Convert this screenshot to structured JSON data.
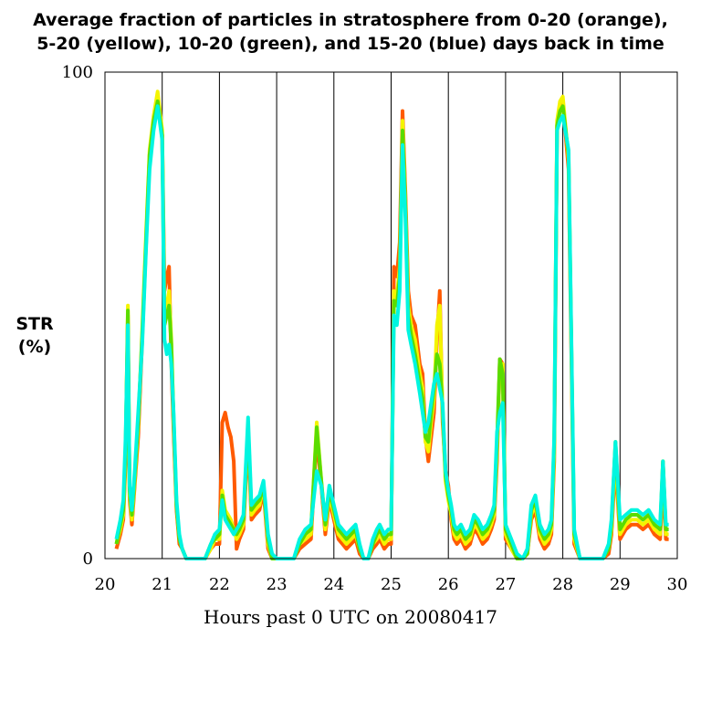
{
  "chart_data": {
    "type": "line",
    "title_lines": [
      "Average fraction of particles in stratosphere from 0-20 (orange),",
      "5-20 (yellow), 10-20 (green), and 15-20 (blue) days back in time"
    ],
    "ylabel_lines": [
      "STR",
      "(%)"
    ],
    "xlabel": "Hours past 0 UTC on 20080417",
    "xlim": [
      20,
      30
    ],
    "ylim": [
      0,
      100
    ],
    "x_ticks": [
      "20",
      "21",
      "22",
      "23",
      "24",
      "25",
      "26",
      "27",
      "28",
      "29",
      "30"
    ],
    "y_ticks": [
      "0",
      "100"
    ],
    "vertical_grid": [
      21,
      22,
      23,
      24,
      25,
      26,
      27,
      28,
      29
    ],
    "series": [
      {
        "color": "#ff5a00",
        "x": [
          20.2,
          20.27,
          20.32,
          20.36,
          20.4,
          20.43,
          20.47,
          20.52,
          20.58,
          20.65,
          20.72,
          20.78,
          20.85,
          20.92,
          21.0,
          21.04,
          21.08,
          21.12,
          21.16,
          21.2,
          21.25,
          21.3,
          21.35,
          21.42,
          21.5,
          21.58,
          21.65,
          21.75,
          21.85,
          21.92,
          22.0,
          22.05,
          22.1,
          22.15,
          22.2,
          22.25,
          22.3,
          22.35,
          22.42,
          22.5,
          22.56,
          22.62,
          22.7,
          22.77,
          22.85,
          22.92,
          23.0,
          23.1,
          23.2,
          23.3,
          23.4,
          23.5,
          23.6,
          23.7,
          23.78,
          23.85,
          23.92,
          24.0,
          24.08,
          24.15,
          24.22,
          24.3,
          24.38,
          24.45,
          24.52,
          24.6,
          24.68,
          24.75,
          24.8,
          24.88,
          24.95,
          25.0,
          25.05,
          25.1,
          25.15,
          25.2,
          25.25,
          25.3,
          25.35,
          25.42,
          25.5,
          25.55,
          25.6,
          25.65,
          25.7,
          25.75,
          25.8,
          25.85,
          25.9,
          25.95,
          26.0,
          26.05,
          26.1,
          26.15,
          26.22,
          26.3,
          26.38,
          26.45,
          26.52,
          26.6,
          26.68,
          26.75,
          26.8,
          26.85,
          26.9,
          26.95,
          27.0,
          27.1,
          27.2,
          27.3,
          27.38,
          27.45,
          27.52,
          27.6,
          27.68,
          27.75,
          27.8,
          27.85,
          27.9,
          27.95,
          28.0,
          28.1,
          28.2,
          28.3,
          28.4,
          28.5,
          28.6,
          28.7,
          28.8,
          28.85,
          28.92,
          29.0,
          29.1,
          29.2,
          29.3,
          29.4,
          29.5,
          29.6,
          29.7,
          29.75,
          29.8,
          29.85
        ],
        "values": [
          2,
          5,
          8,
          20,
          50,
          12,
          7,
          15,
          25,
          45,
          65,
          83,
          90,
          95,
          87,
          55,
          58,
          60,
          40,
          26,
          10,
          3,
          2,
          0,
          0,
          0,
          0,
          0,
          2,
          3,
          3,
          28,
          30,
          27,
          25,
          20,
          2,
          4,
          6,
          25,
          8,
          9,
          10,
          14,
          2,
          0,
          0,
          0,
          0,
          0,
          2,
          3,
          4,
          25,
          15,
          5,
          12,
          8,
          4,
          3,
          2,
          3,
          4,
          1,
          0,
          0,
          2,
          3,
          4,
          2,
          3,
          3,
          60,
          58,
          65,
          92,
          75,
          55,
          50,
          48,
          40,
          38,
          25,
          20,
          25,
          30,
          45,
          55,
          28,
          18,
          15,
          8,
          4,
          3,
          4,
          2,
          3,
          6,
          5,
          3,
          4,
          6,
          8,
          20,
          41,
          40,
          4,
          2,
          0,
          0,
          1,
          8,
          10,
          4,
          2,
          3,
          5,
          20,
          88,
          93,
          94,
          80,
          3,
          0,
          0,
          0,
          0,
          0,
          1,
          5,
          20,
          4,
          6,
          7,
          7,
          6,
          7,
          5,
          4,
          16,
          4,
          4
        ]
      },
      {
        "color": "#f4f400",
        "x": [
          20.2,
          20.27,
          20.32,
          20.36,
          20.4,
          20.43,
          20.47,
          20.52,
          20.58,
          20.65,
          20.72,
          20.78,
          20.85,
          20.92,
          21.0,
          21.04,
          21.08,
          21.12,
          21.16,
          21.2,
          21.25,
          21.3,
          21.35,
          21.42,
          21.5,
          21.58,
          21.65,
          21.75,
          21.85,
          21.92,
          22.0,
          22.05,
          22.1,
          22.15,
          22.2,
          22.25,
          22.3,
          22.35,
          22.42,
          22.5,
          22.56,
          22.62,
          22.7,
          22.77,
          22.85,
          22.92,
          23.0,
          23.1,
          23.2,
          23.3,
          23.4,
          23.5,
          23.6,
          23.7,
          23.78,
          23.85,
          23.92,
          24.0,
          24.08,
          24.15,
          24.22,
          24.3,
          24.38,
          24.45,
          24.52,
          24.6,
          24.68,
          24.75,
          24.8,
          24.88,
          24.95,
          25.0,
          25.05,
          25.1,
          25.15,
          25.2,
          25.25,
          25.3,
          25.35,
          25.42,
          25.5,
          25.55,
          25.6,
          25.65,
          25.7,
          25.75,
          25.8,
          25.85,
          25.9,
          25.95,
          26.0,
          26.05,
          26.1,
          26.15,
          26.22,
          26.3,
          26.38,
          26.45,
          26.52,
          26.6,
          26.68,
          26.75,
          26.8,
          26.85,
          26.9,
          26.95,
          27.0,
          27.1,
          27.2,
          27.3,
          27.38,
          27.45,
          27.52,
          27.6,
          27.68,
          27.75,
          27.8,
          27.85,
          27.9,
          27.95,
          28.0,
          28.1,
          28.2,
          28.3,
          28.4,
          28.5,
          28.6,
          28.7,
          28.8,
          28.85,
          28.92,
          29.0,
          29.1,
          29.2,
          29.3,
          29.4,
          29.5,
          29.6,
          29.7,
          29.75,
          29.8,
          29.85
        ],
        "values": [
          3,
          6,
          9,
          22,
          52,
          13,
          8,
          16,
          27,
          47,
          67,
          84,
          91,
          96,
          88,
          50,
          52,
          55,
          45,
          28,
          11,
          4,
          2,
          0,
          0,
          0,
          0,
          0,
          2,
          4,
          4,
          14,
          10,
          9,
          8,
          6,
          4,
          5,
          7,
          27,
          9,
          10,
          11,
          15,
          3,
          0,
          0,
          0,
          0,
          0,
          3,
          4,
          5,
          28,
          16,
          6,
          13,
          9,
          5,
          4,
          3,
          4,
          5,
          2,
          0,
          0,
          3,
          4,
          5,
          3,
          4,
          4,
          55,
          54,
          60,
          90,
          73,
          52,
          48,
          45,
          38,
          35,
          24,
          22,
          28,
          33,
          48,
          52,
          30,
          16,
          12,
          9,
          5,
          4,
          5,
          3,
          4,
          7,
          6,
          4,
          5,
          7,
          9,
          22,
          40,
          40,
          5,
          2,
          0,
          0,
          1,
          9,
          11,
          5,
          3,
          4,
          6,
          22,
          90,
          94,
          95,
          82,
          4,
          0,
          0,
          0,
          0,
          0,
          2,
          6,
          22,
          5,
          7,
          8,
          8,
          7,
          8,
          6,
          5,
          20,
          5,
          5
        ]
      },
      {
        "color": "#5adc00",
        "x": [
          20.2,
          20.27,
          20.32,
          20.36,
          20.4,
          20.43,
          20.47,
          20.52,
          20.58,
          20.65,
          20.72,
          20.78,
          20.85,
          20.92,
          21.0,
          21.04,
          21.08,
          21.12,
          21.16,
          21.2,
          21.25,
          21.3,
          21.35,
          21.42,
          21.5,
          21.58,
          21.65,
          21.75,
          21.85,
          21.92,
          22.0,
          22.05,
          22.1,
          22.15,
          22.2,
          22.25,
          22.3,
          22.35,
          22.42,
          22.5,
          22.56,
          22.62,
          22.7,
          22.77,
          22.85,
          22.92,
          23.0,
          23.1,
          23.2,
          23.3,
          23.4,
          23.5,
          23.6,
          23.7,
          23.78,
          23.85,
          23.92,
          24.0,
          24.08,
          24.15,
          24.22,
          24.3,
          24.38,
          24.45,
          24.52,
          24.6,
          24.68,
          24.75,
          24.8,
          24.88,
          24.95,
          25.0,
          25.05,
          25.1,
          25.15,
          25.2,
          25.25,
          25.3,
          25.35,
          25.42,
          25.5,
          25.55,
          25.6,
          25.65,
          25.7,
          25.75,
          25.8,
          25.85,
          25.9,
          25.95,
          26.0,
          26.05,
          26.1,
          26.15,
          26.22,
          26.3,
          26.38,
          26.45,
          26.52,
          26.6,
          26.68,
          26.75,
          26.8,
          26.85,
          26.9,
          26.95,
          27.0,
          27.1,
          27.2,
          27.3,
          27.38,
          27.45,
          27.52,
          27.6,
          27.68,
          27.75,
          27.8,
          27.85,
          27.9,
          27.95,
          28.0,
          28.1,
          28.2,
          28.3,
          28.4,
          28.5,
          28.6,
          28.7,
          28.8,
          28.85,
          28.92,
          29.0,
          29.1,
          29.2,
          29.3,
          29.4,
          29.5,
          29.6,
          29.7,
          29.75,
          29.8,
          29.85
        ],
        "values": [
          3,
          7,
          10,
          23,
          51,
          14,
          9,
          17,
          28,
          46,
          66,
          83,
          90,
          94,
          87,
          48,
          50,
          52,
          44,
          29,
          11,
          4,
          2,
          0,
          0,
          0,
          0,
          0,
          3,
          4,
          5,
          13,
          9,
          8,
          7,
          6,
          5,
          6,
          8,
          27,
          10,
          11,
          12,
          15,
          4,
          0,
          0,
          0,
          0,
          0,
          3,
          5,
          6,
          27,
          16,
          7,
          14,
          10,
          6,
          5,
          4,
          5,
          6,
          2,
          0,
          0,
          3,
          5,
          6,
          4,
          5,
          5,
          53,
          52,
          58,
          88,
          72,
          50,
          46,
          42,
          36,
          33,
          25,
          24,
          30,
          35,
          42,
          40,
          31,
          17,
          13,
          10,
          6,
          5,
          6,
          4,
          5,
          8,
          7,
          5,
          6,
          8,
          10,
          24,
          41,
          38,
          6,
          3,
          0,
          0,
          1,
          10,
          12,
          6,
          4,
          5,
          7,
          24,
          89,
          92,
          93,
          83,
          5,
          0,
          0,
          0,
          0,
          0,
          2,
          7,
          24,
          6,
          8,
          9,
          9,
          8,
          9,
          7,
          6,
          20,
          6,
          6
        ]
      },
      {
        "color": "#00f5e0",
        "x": [
          20.2,
          20.27,
          20.32,
          20.36,
          20.4,
          20.43,
          20.47,
          20.52,
          20.58,
          20.65,
          20.72,
          20.78,
          20.85,
          20.92,
          21.0,
          21.04,
          21.08,
          21.12,
          21.16,
          21.2,
          21.25,
          21.3,
          21.35,
          21.42,
          21.5,
          21.58,
          21.65,
          21.75,
          21.85,
          21.92,
          22.0,
          22.05,
          22.1,
          22.15,
          22.2,
          22.25,
          22.3,
          22.35,
          22.42,
          22.5,
          22.56,
          22.62,
          22.7,
          22.77,
          22.85,
          22.92,
          23.0,
          23.1,
          23.2,
          23.3,
          23.4,
          23.5,
          23.6,
          23.7,
          23.78,
          23.85,
          23.92,
          24.0,
          24.08,
          24.15,
          24.22,
          24.3,
          24.38,
          24.45,
          24.52,
          24.6,
          24.68,
          24.75,
          24.8,
          24.88,
          24.95,
          25.0,
          25.05,
          25.1,
          25.15,
          25.2,
          25.25,
          25.3,
          25.35,
          25.42,
          25.5,
          25.55,
          25.6,
          25.65,
          25.7,
          25.75,
          25.8,
          25.85,
          25.9,
          25.95,
          26.0,
          26.05,
          26.1,
          26.15,
          26.22,
          26.3,
          26.38,
          26.45,
          26.52,
          26.6,
          26.68,
          26.75,
          26.8,
          26.85,
          26.9,
          26.95,
          27.0,
          27.1,
          27.2,
          27.3,
          27.38,
          27.45,
          27.52,
          27.6,
          27.68,
          27.75,
          27.8,
          27.85,
          27.9,
          27.95,
          28.0,
          28.1,
          28.2,
          28.3,
          28.4,
          28.5,
          28.6,
          28.7,
          28.8,
          28.85,
          28.92,
          29.0,
          29.1,
          29.2,
          29.3,
          29.4,
          29.5,
          29.6,
          29.7,
          29.75,
          29.8,
          29.85
        ],
        "values": [
          4,
          8,
          12,
          25,
          48,
          15,
          10,
          18,
          30,
          44,
          64,
          80,
          88,
          93,
          86,
          45,
          42,
          44,
          40,
          30,
          12,
          5,
          2,
          0,
          0,
          0,
          0,
          0,
          3,
          5,
          6,
          12,
          8,
          7,
          6,
          5,
          6,
          7,
          9,
          29,
          11,
          12,
          13,
          16,
          5,
          1,
          0,
          0,
          0,
          0,
          4,
          6,
          7,
          18,
          15,
          8,
          15,
          11,
          7,
          6,
          5,
          6,
          7,
          3,
          0,
          0,
          4,
          6,
          7,
          5,
          6,
          6,
          50,
          48,
          55,
          85,
          70,
          47,
          44,
          40,
          34,
          30,
          26,
          28,
          32,
          36,
          38,
          35,
          32,
          18,
          14,
          11,
          7,
          6,
          7,
          5,
          6,
          9,
          8,
          6,
          7,
          9,
          11,
          26,
          30,
          32,
          7,
          4,
          1,
          0,
          2,
          11,
          13,
          7,
          5,
          6,
          8,
          25,
          88,
          90,
          91,
          84,
          6,
          0,
          0,
          0,
          0,
          0,
          3,
          8,
          24,
          8,
          9,
          10,
          10,
          9,
          10,
          8,
          7,
          20,
          7,
          7
        ]
      }
    ]
  }
}
